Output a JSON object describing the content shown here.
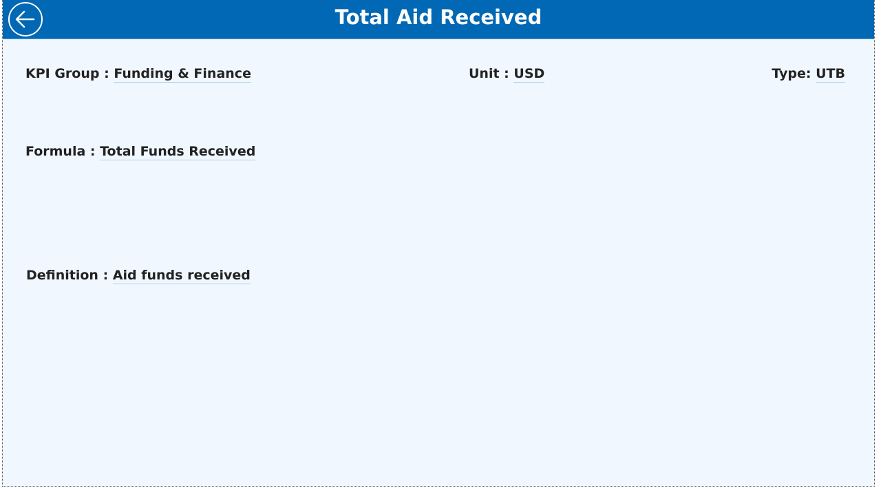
{
  "header": {
    "title": "Total Aid Received",
    "back_icon": "arrow-left-circle-icon"
  },
  "fields": {
    "kpi_group": {
      "label": "KPI Group : ",
      "value": "Funding & Finance"
    },
    "unit": {
      "label": "Unit : ",
      "value": "USD"
    },
    "type": {
      "label": "Type: ",
      "value": "UTB"
    },
    "formula": {
      "label": "Formula : ",
      "value": "Total Funds Received"
    },
    "definition": {
      "label": "Definition : ",
      "value": "Aid funds received"
    }
  },
  "colors": {
    "header": "#0068b4",
    "background": "#f0f7fe"
  }
}
